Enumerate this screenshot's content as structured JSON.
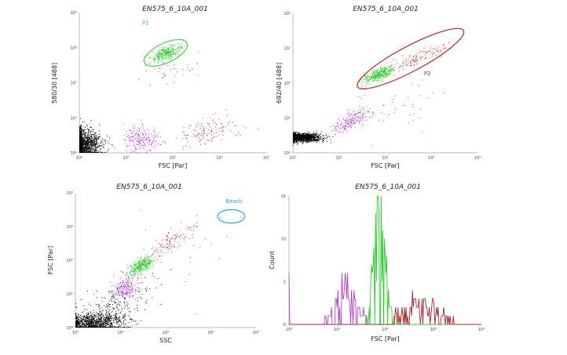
{
  "chart_data": [
    {
      "type": "scatter",
      "title": "EN575_6_10A_001",
      "xlabel": "FSC [Par]",
      "ylabel": "580/30 [488]",
      "scale": "log",
      "xlim": [
        1,
        10000
      ],
      "ylim": [
        1,
        10000
      ],
      "tick_labels": [
        "10⁰",
        "10¹",
        "10²",
        "10³",
        "10⁴"
      ],
      "gate": {
        "name": "P1",
        "color": "#3dd63d",
        "center_log": [
          1.85,
          2.85
        ],
        "radii_log": [
          0.5,
          0.28
        ],
        "angle_deg": -25
      },
      "populations": [
        {
          "color": "#000000",
          "n": 1400,
          "cx": 0.05,
          "cy": 0.25,
          "sx": 0.2,
          "sy": 0.22,
          "corr": 0
        },
        {
          "color": "#b040c8",
          "n": 230,
          "cx": 1.3,
          "cy": 0.4,
          "sx": 0.2,
          "sy": 0.18,
          "corr": 0
        },
        {
          "color": "#b03030",
          "n": 130,
          "cx": 2.75,
          "cy": 0.6,
          "sx": 0.3,
          "sy": 0.18,
          "corr": 0.3
        },
        {
          "color": "#2ecc2e",
          "n": 320,
          "cx": 1.85,
          "cy": 2.85,
          "sx": 0.17,
          "sy": 0.1,
          "corr": 0.6
        },
        {
          "color": "#555555",
          "n": 40,
          "cx": 1.9,
          "cy": 2.4,
          "sx": 0.3,
          "sy": 0.25,
          "corr": 0.3
        }
      ]
    },
    {
      "type": "scatter",
      "title": "EN575_6_10A_001",
      "xlabel": "FSC [Par]",
      "ylabel": "692/40 [488]",
      "scale": "log",
      "xlim": [
        1,
        10000
      ],
      "ylim": [
        1,
        10000
      ],
      "tick_labels": [
        "10⁰",
        "10¹",
        "10²",
        "10³",
        "10⁴"
      ],
      "gate": {
        "name": "P2",
        "color": "#b52b2b",
        "center_log": [
          2.55,
          2.7
        ],
        "radii_log": [
          1.3,
          0.36
        ],
        "angle_deg": -28
      },
      "populations": [
        {
          "color": "#000000",
          "n": 1300,
          "cx": 0.15,
          "cy": 0.45,
          "sx": 0.22,
          "sy": 0.06,
          "corr": 0
        },
        {
          "color": "#b040c8",
          "n": 220,
          "cx": 1.25,
          "cy": 0.9,
          "sx": 0.2,
          "sy": 0.17,
          "corr": 0.7
        },
        {
          "color": "#2ecc2e",
          "n": 380,
          "cx": 1.85,
          "cy": 2.25,
          "sx": 0.17,
          "sy": 0.12,
          "corr": 0.7
        },
        {
          "color": "#b03030",
          "n": 120,
          "cx": 2.75,
          "cy": 2.75,
          "sx": 0.35,
          "sy": 0.22,
          "corr": 0.9
        },
        {
          "color": "#555555",
          "n": 40,
          "cx": 2.2,
          "cy": 1.3,
          "sx": 0.6,
          "sy": 0.5,
          "corr": 0
        }
      ]
    },
    {
      "type": "scatter",
      "title": "EN575_6_10A_001",
      "xlabel": "SSC",
      "ylabel": "FSC [Par]",
      "scale": "log",
      "xlim": [
        1,
        10000
      ],
      "ylim": [
        1,
        10000
      ],
      "tick_labels": [
        "10⁰",
        "10¹",
        "10²",
        "10³",
        "10⁴"
      ],
      "gate": {
        "name": "Beads",
        "color": "#2aa8d8",
        "center_log": [
          3.45,
          3.3
        ],
        "radii_log": [
          0.3,
          0.2
        ],
        "angle_deg": 0
      },
      "populations": [
        {
          "color": "#000000",
          "n": 1100,
          "cx": 0.35,
          "cy": 0.12,
          "sx": 0.35,
          "sy": 0.15,
          "corr": 0.2
        },
        {
          "color": "#000000",
          "n": 250,
          "cx": 0.8,
          "cy": 0.6,
          "sx": 0.4,
          "sy": 0.35,
          "corr": 0.5
        },
        {
          "color": "#b040c8",
          "n": 230,
          "cx": 1.1,
          "cy": 1.2,
          "sx": 0.17,
          "sy": 0.2,
          "corr": 0.4
        },
        {
          "color": "#2ecc2e",
          "n": 320,
          "cx": 1.45,
          "cy": 1.85,
          "sx": 0.13,
          "sy": 0.14,
          "corr": 0.6
        },
        {
          "color": "#b03030",
          "n": 120,
          "cx": 2.1,
          "cy": 2.55,
          "sx": 0.3,
          "sy": 0.3,
          "corr": 0.85
        },
        {
          "color": "#555555",
          "n": 30,
          "cx": 2.3,
          "cy": 2.2,
          "sx": 0.7,
          "sy": 0.6,
          "corr": 0.2
        }
      ]
    },
    {
      "type": "histogram",
      "title": "EN575_6_10A_001",
      "xlabel": "FSC [Par]",
      "ylabel": "Count",
      "scale": "log-x",
      "xlim": [
        1,
        10000
      ],
      "ylim": [
        0,
        15
      ],
      "tick_labels": [
        "10⁰",
        "10¹",
        "10²",
        "10³",
        "10⁴"
      ],
      "y_tick_labels": [
        "0",
        "5",
        "10",
        "15"
      ],
      "series": [
        {
          "name": "purple",
          "color": "#b040c8",
          "center_log": 1.2,
          "spread_log": 0.22,
          "peak": 5,
          "range_log": [
            0.4,
            1.6
          ],
          "edge_count_at_1": 6
        },
        {
          "name": "green",
          "color": "#2ecc2e",
          "center_log": 1.88,
          "spread_log": 0.12,
          "peak": 14,
          "range_log": [
            1.45,
            2.25
          ]
        },
        {
          "name": "red",
          "color": "#a52a2a",
          "center_log": 2.7,
          "spread_log": 0.4,
          "peak": 3,
          "range_log": [
            2.2,
            3.7
          ]
        }
      ]
    }
  ]
}
